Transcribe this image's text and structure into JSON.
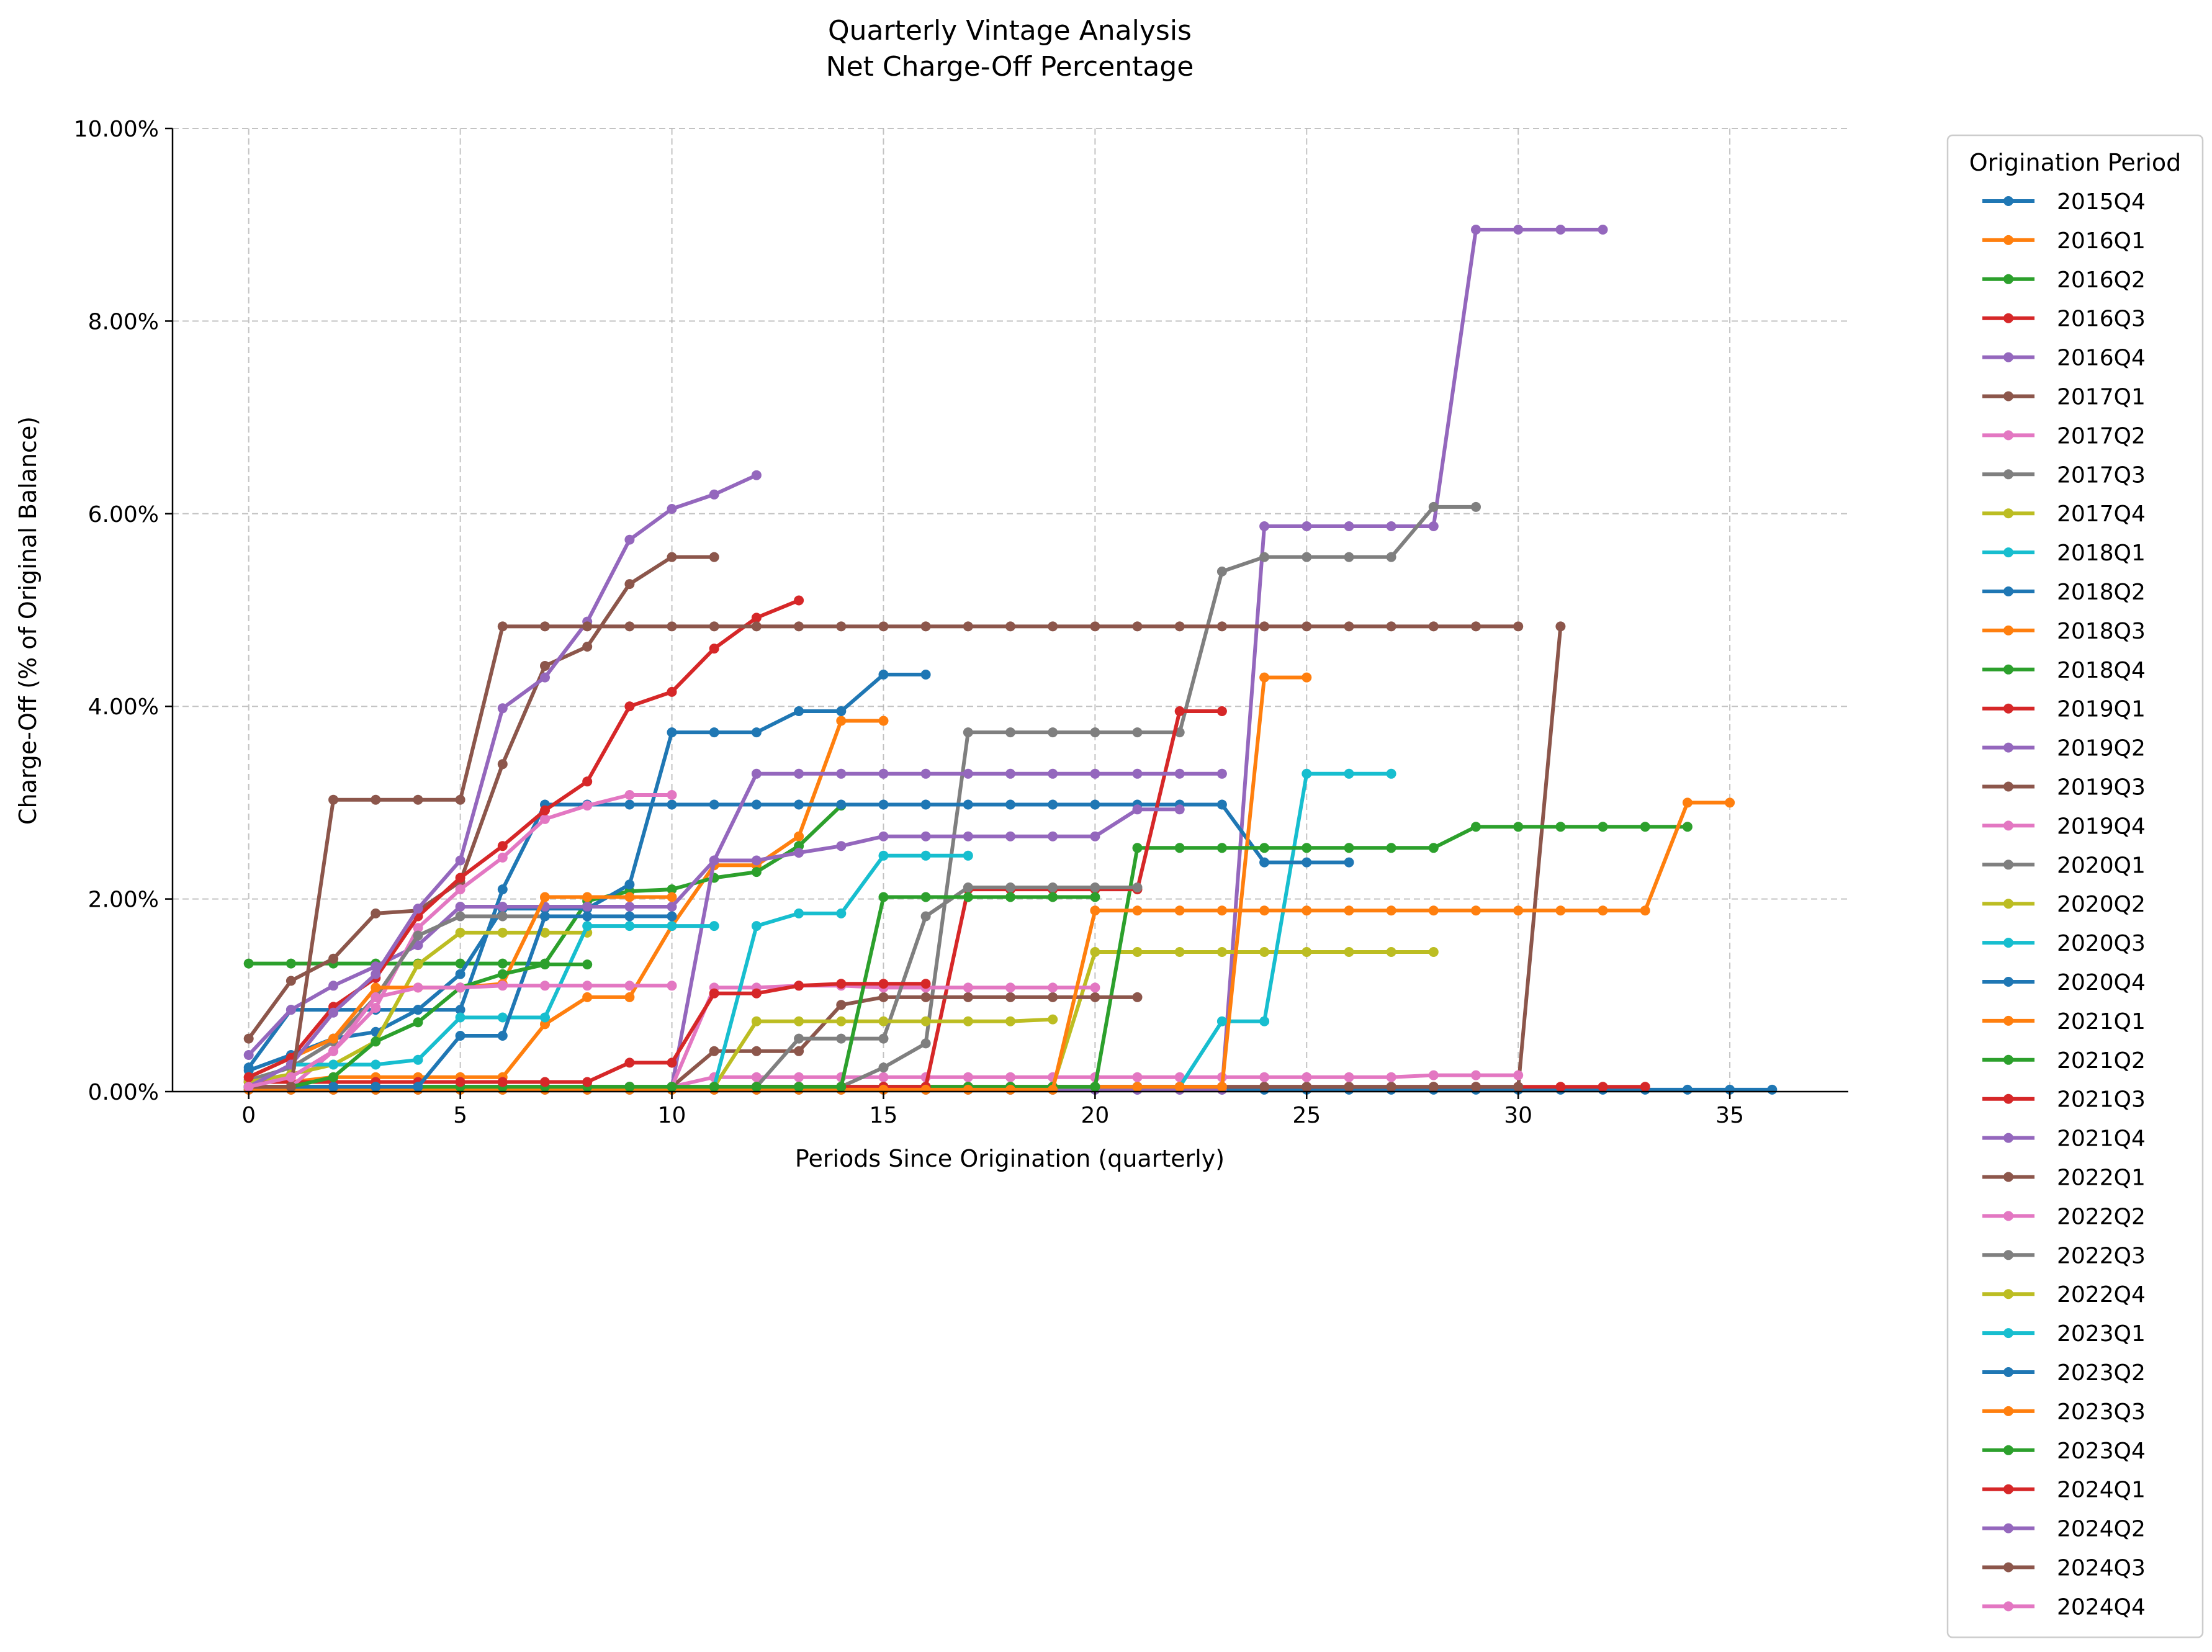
{
  "chart_data": {
    "type": "line",
    "title": "Quarterly Vintage Analysis",
    "subtitle": "Net Charge-Off Percentage",
    "xlabel": "Periods Since Origination (quarterly)",
    "ylabel": "Charge-Off (% of Original Balance)",
    "xlim": [
      -1.8,
      37.8
    ],
    "ylim": [
      0,
      10
    ],
    "x_ticks": [
      0,
      5,
      10,
      15,
      20,
      25,
      30,
      35
    ],
    "y_ticks": [
      0,
      2,
      4,
      6,
      8,
      10
    ],
    "y_tick_labels": [
      "0.00%",
      "2.00%",
      "4.00%",
      "6.00%",
      "8.00%",
      "10.00%"
    ],
    "grid": true,
    "legend": {
      "title": "Origination Period",
      "placement": "outside right"
    },
    "series": [
      {
        "name": "2015Q4",
        "color": "#1f77b4",
        "values": [
          0.02,
          0.02,
          0.02,
          0.02,
          0.02,
          0.02,
          0.02,
          0.02,
          0.02,
          0.02,
          0.02,
          0.02,
          0.02,
          0.02,
          0.02,
          0.02,
          0.02,
          0.02,
          0.02,
          0.02,
          0.02,
          0.02,
          0.02,
          0.02,
          0.02,
          0.02,
          0.02,
          0.02,
          0.02,
          0.02,
          0.02,
          0.02,
          0.02,
          0.02,
          0.02,
          0.02,
          0.02
        ]
      },
      {
        "name": "2016Q1",
        "color": "#ff7f0e",
        "values": [
          0.1,
          0.1,
          0.15,
          0.15,
          0.15,
          0.15,
          0.15,
          0.7,
          0.98,
          0.98,
          1.72,
          2.35,
          2.35,
          2.65,
          3.85,
          3.85
        ]
      },
      {
        "name": "2016Q2",
        "color": "#2ca02c",
        "values": [
          1.33,
          1.33,
          1.33,
          1.33,
          1.33,
          1.33,
          1.33,
          1.33,
          1.98,
          2.08,
          2.1,
          2.22,
          2.28,
          2.55,
          2.97
        ]
      },
      {
        "name": "2016Q3",
        "color": "#d62728",
        "values": [
          0.05,
          0.05,
          0.05,
          0.05,
          0.05,
          0.05,
          0.05,
          0.05,
          0.05,
          0.05,
          0.05,
          0.05,
          0.05,
          0.05,
          0.05,
          0.05,
          0.05,
          0.05,
          0.05,
          0.05,
          0.05,
          0.05,
          0.05,
          0.05,
          0.05,
          0.05,
          0.05,
          0.05,
          0.05,
          0.05,
          0.05,
          0.05,
          0.05,
          0.05
        ]
      },
      {
        "name": "2016Q4",
        "color": "#9467bd",
        "values": [
          0.02,
          0.02,
          0.02,
          0.02,
          0.02,
          0.02,
          0.02,
          0.02,
          0.02,
          0.02,
          0.02,
          0.02,
          0.02,
          0.02,
          0.02,
          0.02,
          0.02,
          0.02,
          0.02,
          0.02,
          0.02,
          0.02,
          0.02,
          0.02,
          5.87,
          5.87,
          5.87,
          5.87,
          5.87,
          8.95,
          8.95,
          8.95,
          8.95
        ]
      },
      {
        "name": "2017Q1",
        "color": "#8c564b",
        "values": [
          0.05,
          0.05,
          0.05,
          0.05,
          0.05,
          0.05,
          0.05,
          0.05,
          0.05,
          0.05,
          0.05,
          0.05,
          0.05,
          0.05,
          0.05,
          0.05,
          0.05,
          0.05,
          0.05,
          0.05,
          0.05,
          0.05,
          0.05,
          0.05,
          0.05,
          0.05,
          0.05,
          0.05,
          0.05,
          0.05,
          0.05,
          4.83
        ]
      },
      {
        "name": "2017Q2",
        "color": "#e377c2",
        "values": [
          0.05,
          0.05,
          0.05,
          0.05,
          0.05,
          0.05,
          0.05,
          0.05,
          0.05,
          0.05,
          0.05,
          0.15,
          0.15,
          0.15,
          0.15,
          0.15,
          0.15,
          0.15,
          0.15,
          0.15,
          0.15,
          0.15,
          0.15,
          0.15,
          0.15,
          0.15,
          0.15,
          0.15,
          0.17,
          0.17,
          0.17
        ]
      },
      {
        "name": "2017Q3",
        "color": "#7f7f7f",
        "values": [
          0.05,
          0.05,
          0.05,
          0.05,
          0.05,
          0.05,
          0.05,
          0.05,
          0.05,
          0.05,
          0.05,
          0.05,
          0.05,
          0.05,
          0.05,
          0.25,
          0.5,
          3.73,
          3.73,
          3.73,
          3.73,
          3.73,
          3.73,
          5.4,
          5.55,
          5.55,
          5.55,
          5.55,
          6.07,
          6.07
        ]
      },
      {
        "name": "2017Q4",
        "color": "#bcbd22",
        "values": [
          0.05,
          0.05,
          0.05,
          0.05,
          0.05,
          0.05,
          0.05,
          0.05,
          0.05,
          0.05,
          0.05,
          0.05,
          0.05,
          0.05,
          0.05,
          0.05,
          0.05,
          0.05,
          0.05,
          0.05,
          1.45,
          1.45,
          1.45,
          1.45,
          1.45,
          1.45,
          1.45,
          1.45,
          1.45
        ]
      },
      {
        "name": "2018Q1",
        "color": "#17becf",
        "values": [
          0.05,
          0.05,
          0.05,
          0.05,
          0.05,
          0.05,
          0.05,
          0.05,
          0.05,
          0.05,
          0.05,
          0.05,
          0.05,
          0.05,
          0.05,
          0.05,
          0.05,
          0.05,
          0.05,
          0.05,
          0.05,
          0.05,
          0.05,
          0.73,
          0.73,
          3.3,
          3.3,
          3.3
        ]
      },
      {
        "name": "2018Q2",
        "color": "#1f77b4",
        "values": [
          0.22,
          0.38,
          0.55,
          0.62,
          0.85,
          0.85,
          2.1,
          2.98,
          2.98,
          2.98,
          2.98,
          2.98,
          2.98,
          2.98,
          2.98,
          2.98,
          2.98,
          2.98,
          2.98,
          2.98,
          2.98,
          2.98,
          2.98,
          2.98,
          2.38,
          2.38,
          2.38
        ]
      },
      {
        "name": "2018Q3",
        "color": "#ff7f0e",
        "values": [
          0.05,
          0.05,
          0.05,
          0.05,
          0.05,
          0.05,
          0.05,
          0.05,
          0.05,
          0.05,
          0.05,
          0.05,
          0.05,
          0.05,
          0.05,
          0.05,
          0.05,
          0.05,
          0.05,
          0.05,
          0.05,
          0.05,
          0.05,
          0.05,
          4.3,
          4.3
        ]
      },
      {
        "name": "2018Q4",
        "color": "#2ca02c",
        "values": [
          0.05,
          0.05,
          0.05,
          0.05,
          0.05,
          0.05,
          0.05,
          0.05,
          0.05,
          0.05,
          0.05,
          0.05,
          0.05,
          0.05,
          0.05,
          0.05,
          0.05,
          0.05,
          0.05,
          0.05,
          0.05,
          2.53,
          2.53,
          2.53,
          2.53,
          2.53,
          2.53,
          2.53,
          2.53,
          2.75,
          2.75,
          2.75,
          2.75,
          2.75,
          2.75
        ]
      },
      {
        "name": "2019Q1",
        "color": "#d62728",
        "values": [
          0.05,
          0.05,
          0.05,
          0.05,
          0.05,
          0.05,
          0.05,
          0.05,
          0.05,
          0.05,
          0.05,
          0.05,
          0.05,
          0.05,
          0.05,
          0.05,
          0.05,
          2.1,
          2.1,
          2.1,
          2.1,
          2.1,
          3.95,
          3.95
        ]
      },
      {
        "name": "2019Q2",
        "color": "#9467bd",
        "values": [
          0.05,
          0.05,
          0.05,
          0.05,
          0.05,
          0.05,
          0.05,
          0.05,
          0.05,
          0.05,
          0.05,
          2.4,
          3.3,
          3.3,
          3.3,
          3.3,
          3.3,
          3.3,
          3.3,
          3.3,
          3.3,
          3.3,
          3.3,
          3.3
        ]
      },
      {
        "name": "2019Q3",
        "color": "#8c564b",
        "values": [
          0.05,
          0.05,
          0.05,
          0.05,
          0.05,
          0.05,
          0.05,
          0.05,
          0.05,
          0.05,
          0.05,
          0.42,
          0.42,
          0.42,
          0.9,
          0.98,
          0.98,
          0.98,
          0.98,
          0.98,
          0.98,
          0.98
        ]
      },
      {
        "name": "2019Q4",
        "color": "#e377c2",
        "values": [
          0.05,
          0.05,
          0.05,
          0.05,
          0.05,
          0.05,
          0.05,
          0.05,
          0.05,
          0.05,
          0.05,
          1.08,
          1.08,
          1.1,
          1.1,
          1.08,
          1.08,
          1.08,
          1.08,
          1.08,
          1.08
        ]
      },
      {
        "name": "2020Q1",
        "color": "#7f7f7f",
        "values": [
          0.05,
          0.05,
          0.05,
          0.05,
          0.05,
          0.05,
          0.05,
          0.05,
          0.05,
          0.05,
          0.05,
          0.05,
          0.05,
          0.55,
          0.55,
          0.55,
          1.82,
          2.12,
          2.12,
          2.12,
          2.12,
          2.12
        ]
      },
      {
        "name": "2020Q2",
        "color": "#bcbd22",
        "values": [
          0.05,
          0.05,
          0.05,
          0.05,
          0.05,
          0.05,
          0.05,
          0.05,
          0.05,
          0.05,
          0.05,
          0.05,
          0.73,
          0.73,
          0.73,
          0.73,
          0.73,
          0.73,
          0.73,
          0.75
        ]
      },
      {
        "name": "2020Q3",
        "color": "#17becf",
        "values": [
          0.05,
          0.05,
          0.05,
          0.05,
          0.05,
          0.05,
          0.05,
          0.05,
          0.05,
          0.05,
          0.05,
          0.05,
          1.72,
          1.85,
          1.85,
          2.45,
          2.45,
          2.45
        ]
      },
      {
        "name": "2020Q4",
        "color": "#1f77b4",
        "values": [
          0.25,
          0.85,
          0.85,
          0.85,
          0.85,
          1.22,
          1.9,
          1.9,
          1.9,
          2.15,
          3.73,
          3.73,
          3.73,
          3.95,
          3.95,
          4.33,
          4.33
        ]
      },
      {
        "name": "2021Q1",
        "color": "#ff7f0e",
        "values": [
          0.02,
          0.02,
          0.02,
          0.02,
          0.02,
          0.02,
          0.02,
          0.02,
          0.02,
          0.02,
          0.02,
          0.02,
          0.02,
          0.02,
          0.02,
          0.02,
          0.02,
          0.02,
          0.02,
          0.02,
          1.88,
          1.88,
          1.88,
          1.88,
          1.88,
          1.88,
          1.88,
          1.88,
          1.88,
          1.88,
          1.88,
          1.88,
          1.88,
          1.88,
          3.0,
          3.0
        ]
      },
      {
        "name": "2021Q2",
        "color": "#2ca02c",
        "values": [
          0.05,
          0.05,
          0.05,
          0.05,
          0.05,
          0.05,
          0.05,
          0.05,
          0.05,
          0.05,
          0.05,
          0.05,
          0.05,
          0.05,
          0.05,
          2.02,
          2.02,
          2.02,
          2.02,
          2.02,
          2.02
        ]
      },
      {
        "name": "2021Q3",
        "color": "#d62728",
        "values": [
          0.1,
          0.1,
          0.1,
          0.1,
          0.1,
          0.1,
          0.1,
          0.1,
          0.1,
          0.3,
          0.3,
          1.02,
          1.02,
          1.1,
          1.12,
          1.12,
          1.12
        ]
      },
      {
        "name": "2021Q4",
        "color": "#9467bd",
        "values": [
          0.38,
          0.85,
          1.1,
          1.3,
          1.52,
          1.92,
          1.92,
          1.92,
          1.92,
          1.92,
          1.92,
          2.4,
          2.4,
          2.48,
          2.55,
          2.65,
          2.65,
          2.65,
          2.65,
          2.65,
          2.65,
          2.93,
          2.93
        ]
      },
      {
        "name": "2022Q1",
        "color": "#8c564b",
        "values": [
          0.55,
          1.15,
          1.38,
          1.85,
          1.88,
          2.18,
          3.4,
          4.42,
          4.62,
          5.27,
          5.55,
          5.55
        ]
      },
      {
        "name": "2022Q2",
        "color": "#e377c2",
        "values": [
          0.05,
          0.05,
          0.42,
          0.87,
          1.7,
          2.1,
          2.43,
          2.83,
          2.97,
          3.08,
          3.08
        ]
      },
      {
        "name": "2022Q3",
        "color": "#7f7f7f",
        "values": [
          0.12,
          0.25,
          0.52,
          0.98,
          1.62,
          1.82,
          1.82,
          1.82,
          1.82,
          1.82,
          1.82
        ]
      },
      {
        "name": "2022Q4",
        "color": "#bcbd22",
        "values": [
          0.1,
          0.18,
          0.28,
          0.52,
          1.32,
          1.65,
          1.65,
          1.65,
          1.65
        ]
      },
      {
        "name": "2023Q1",
        "color": "#17becf",
        "values": [
          0.05,
          0.28,
          0.28,
          0.28,
          0.33,
          0.77,
          0.77,
          0.77,
          1.72,
          1.72,
          1.72,
          1.72
        ]
      },
      {
        "name": "2023Q2",
        "color": "#1f77b4",
        "values": [
          0.05,
          0.05,
          0.05,
          0.05,
          0.05,
          0.58,
          0.58,
          1.82,
          1.82,
          1.82,
          1.82
        ]
      },
      {
        "name": "2023Q3",
        "color": "#ff7f0e",
        "values": [
          0.15,
          0.35,
          0.55,
          1.08,
          1.08,
          1.08,
          1.12,
          2.02,
          2.02,
          2.02,
          2.02
        ]
      },
      {
        "name": "2023Q4",
        "color": "#2ca02c",
        "values": [
          0.05,
          0.05,
          0.15,
          0.52,
          0.72,
          1.08,
          1.22,
          1.32,
          1.32
        ]
      },
      {
        "name": "2024Q1",
        "color": "#d62728",
        "values": [
          0.15,
          0.35,
          0.88,
          1.18,
          1.82,
          2.22,
          2.55,
          2.92,
          3.22,
          4.0,
          4.15,
          4.6,
          4.92,
          5.1
        ]
      },
      {
        "name": "2024Q2",
        "color": "#9467bd",
        "values": [
          0.05,
          0.28,
          0.82,
          1.22,
          1.9,
          2.4,
          3.98,
          4.3,
          4.88,
          5.73,
          6.05,
          6.2,
          6.4
        ]
      },
      {
        "name": "2024Q3",
        "color": "#8c564b",
        "values": [
          0.05,
          0.05,
          3.03,
          3.03,
          3.03,
          3.03,
          4.83,
          4.83,
          4.83,
          4.83,
          4.83,
          4.83,
          4.83,
          4.83,
          4.83,
          4.83,
          4.83,
          4.83,
          4.83,
          4.83,
          4.83,
          4.83,
          4.83,
          4.83,
          4.83,
          4.83,
          4.83,
          4.83,
          4.83,
          4.83,
          4.83
        ]
      },
      {
        "name": "2024Q4",
        "color": "#e377c2",
        "values": [
          0.05,
          0.15,
          0.42,
          0.98,
          1.08,
          1.08,
          1.1,
          1.1,
          1.1,
          1.1,
          1.1
        ]
      }
    ]
  }
}
